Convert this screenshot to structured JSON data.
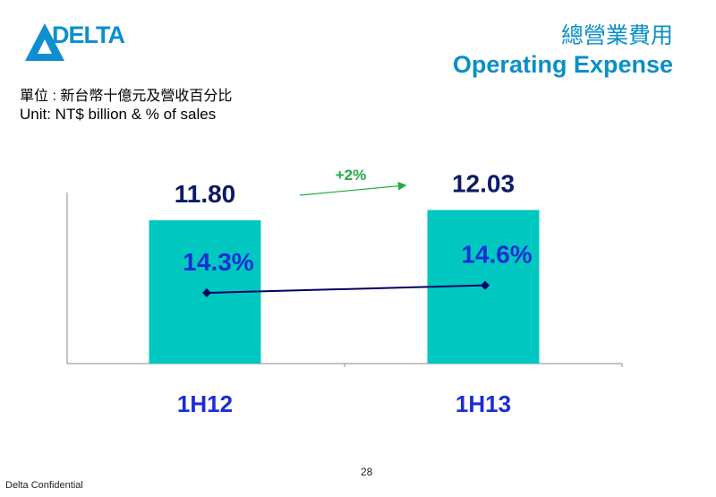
{
  "header": {
    "logo_text": "DELTA",
    "title_cn": "總營業費用",
    "title_en": "Operating Expense"
  },
  "unit": {
    "cn": "單位 : 新台幣十億元及營收百分比",
    "en": "Unit: NT$ billion & % of sales"
  },
  "chart_data": {
    "type": "bar",
    "categories": [
      "1H12",
      "1H13"
    ],
    "series": [
      {
        "values": [
          11.8,
          12.03
        ],
        "labels": [
          "11.80",
          "12.03"
        ],
        "color": "#00c8c0"
      },
      {
        "values": [
          14.3,
          14.6
        ],
        "labels": [
          "14.3%",
          "14.6%"
        ],
        "color": "#000066"
      }
    ],
    "annotation": {
      "text": "+2%",
      "color": "#22aa44"
    },
    "title": "",
    "xlabel": "",
    "ylabel": ""
  },
  "footer": {
    "page": "28",
    "confidential": "Delta Confidential"
  }
}
